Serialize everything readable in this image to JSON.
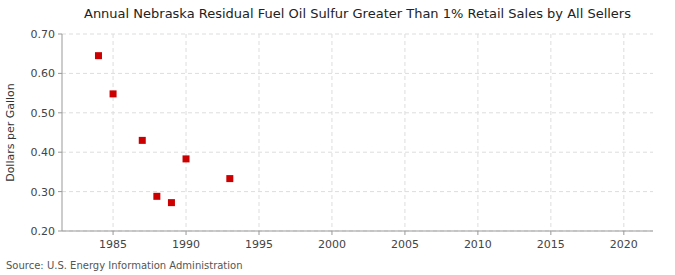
{
  "chart_data": {
    "type": "scatter",
    "title": "Annual Nebraska Residual Fuel Oil Sulfur Greater Than 1% Retail Sales by All Sellers",
    "y_label": "Dollars per Gallon",
    "source": "Source: U.S. Energy Information Administration",
    "x": [
      1984,
      1985,
      1987,
      1988,
      1989,
      1990,
      1993
    ],
    "values": [
      0.645,
      0.548,
      0.43,
      0.288,
      0.272,
      0.383,
      0.333
    ],
    "color": "#cc0000",
    "marker": "square",
    "xlim": [
      1981.5,
      2022
    ],
    "ylim": [
      0.2,
      0.7
    ],
    "xticks": [
      1985,
      1990,
      1995,
      2000,
      2005,
      2010,
      2015,
      2020
    ],
    "yticks": [
      {
        "value": 0.2,
        "label": "0.20"
      },
      {
        "value": 0.3,
        "label": "0.30"
      },
      {
        "value": 0.4,
        "label": "0.40"
      },
      {
        "value": 0.5,
        "label": "0.50"
      },
      {
        "value": 0.6,
        "label": "0.60"
      },
      {
        "value": 0.7,
        "label": "0.70"
      }
    ],
    "grid": true
  }
}
